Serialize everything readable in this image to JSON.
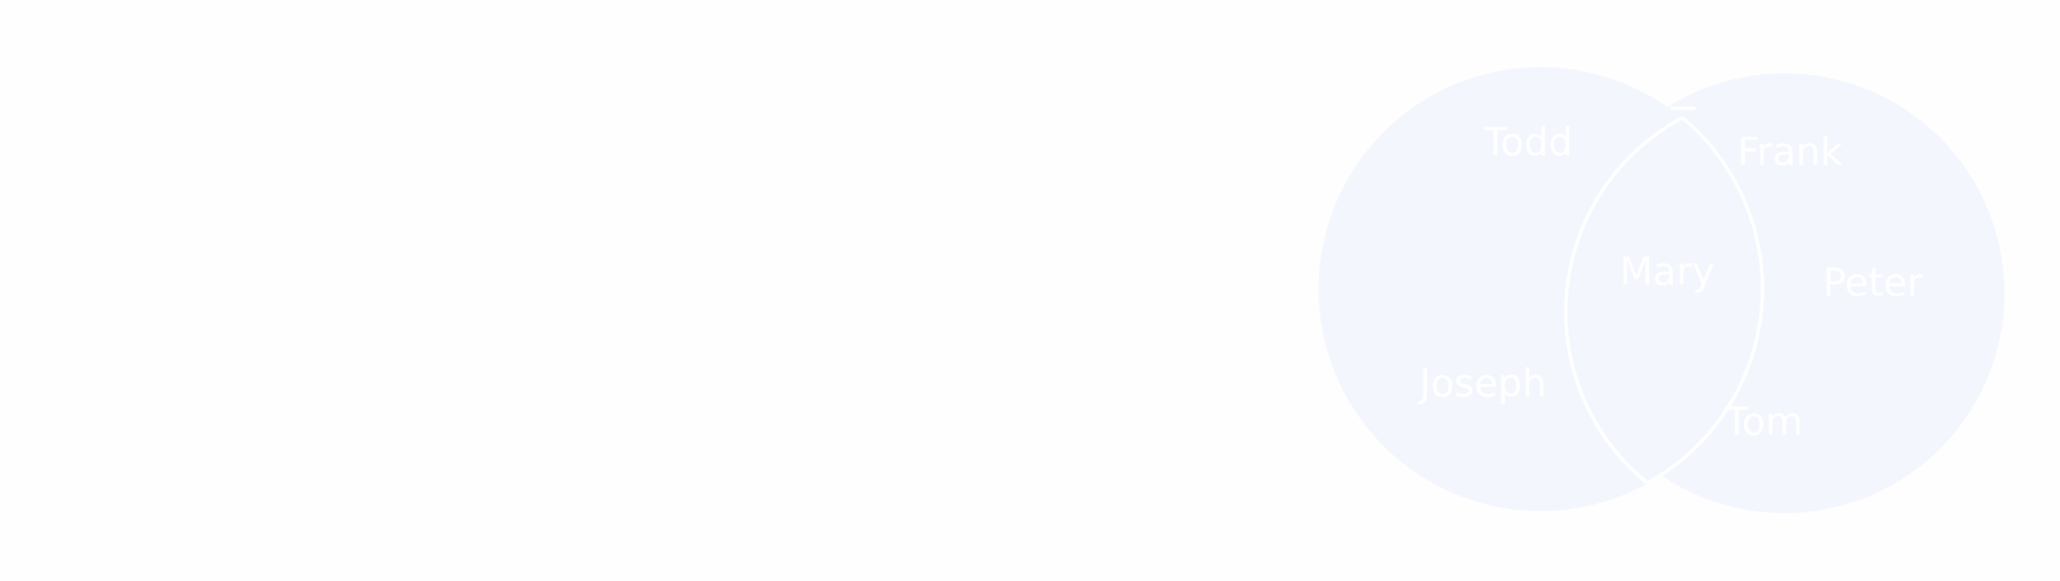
{
  "diagram": {
    "type": "venn",
    "sets": [
      {
        "id": "left",
        "fill": "#f3f6fd"
      },
      {
        "id": "right",
        "fill": "#f3f6fd"
      }
    ],
    "label_color": "#ffffff",
    "outline_color": "#ffffff",
    "labels": {
      "left_only": [
        "Todd",
        "Joseph"
      ],
      "intersection": [
        "Mary"
      ],
      "right_only": [
        "Frank",
        "Peter",
        "Tom"
      ]
    }
  }
}
